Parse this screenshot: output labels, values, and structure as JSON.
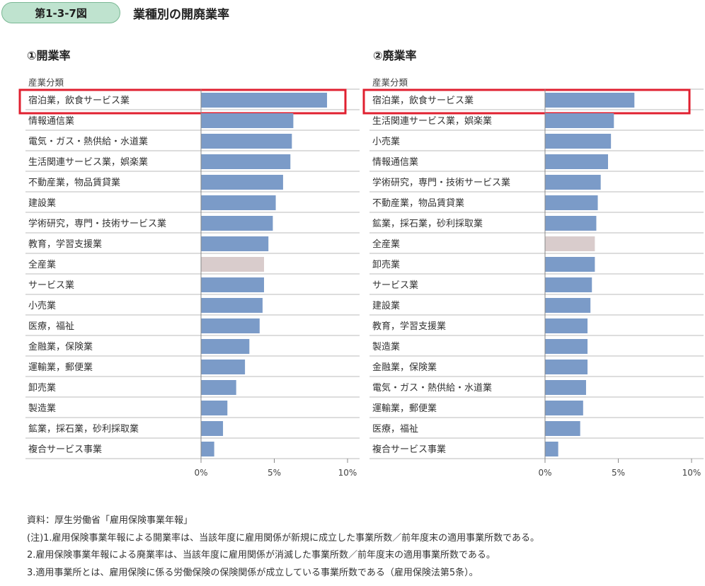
{
  "figure": {
    "number": "第1-3-7図",
    "title": "業種別の開廃業率"
  },
  "chart_data": [
    {
      "type": "bar",
      "title": "①開業率",
      "category_header": "産業分類",
      "xlim": [
        0,
        10
      ],
      "xticks": [
        "0%",
        "5%",
        "10%"
      ],
      "bar_color": "#7b9bc8",
      "total_color": "#d9cccc",
      "highlight_color": "#e02030",
      "highlight_category": "宿泊業，飲食サービス業",
      "total_category": "全産業",
      "categories": [
        "宿泊業，飲食サービス業",
        "情報通信業",
        "電気・ガス・熱供給・水道業",
        "生活関連サービス業，娯楽業",
        "不動産業，物品賃貸業",
        "建設業",
        "学術研究，専門・技術サービス業",
        "教育，学習支援業",
        "全産業",
        "サービス業",
        "小売業",
        "医療，福祉",
        "金融業，保険業",
        "運輸業，郵便業",
        "卸売業",
        "製造業",
        "鉱業，採石業，砂利採取業",
        "複合サービス事業"
      ],
      "values": [
        8.6,
        6.3,
        6.2,
        6.1,
        5.6,
        5.1,
        4.9,
        4.6,
        4.3,
        4.3,
        4.2,
        4.0,
        3.3,
        3.0,
        2.4,
        1.8,
        1.5,
        0.9
      ]
    },
    {
      "type": "bar",
      "title": "②廃業率",
      "category_header": "産業分類",
      "xlim": [
        0,
        10
      ],
      "xticks": [
        "0%",
        "5%",
        "10%"
      ],
      "bar_color": "#7b9bc8",
      "total_color": "#d9cccc",
      "highlight_color": "#e02030",
      "highlight_category": "宿泊業，飲食サービス業",
      "total_category": "全産業",
      "categories": [
        "宿泊業，飲食サービス業",
        "生活関連サービス業，娯楽業",
        "小売業",
        "情報通信業",
        "学術研究，専門・技術サービス業",
        "不動産業，物品賃貸業",
        "鉱業，採石業，砂利採取業",
        "全産業",
        "卸売業",
        "サービス業",
        "建設業",
        "教育，学習支援業",
        "製造業",
        "金融業，保険業",
        "電気・ガス・熱供給・水道業",
        "運輸業，郵便業",
        "医療，福祉",
        "複合サービス事業"
      ],
      "values": [
        6.1,
        4.7,
        4.5,
        4.3,
        3.8,
        3.6,
        3.5,
        3.4,
        3.4,
        3.2,
        3.1,
        2.9,
        2.9,
        2.9,
        2.8,
        2.6,
        2.4,
        0.9
      ]
    }
  ],
  "notes": [
    "資料：厚生労働省「雇用保険事業年報」",
    "(注)1.雇用保険事業年報による開業率は、当該年度に雇用関係が新規に成立した事業所数／前年度末の適用事業所数である。",
    "2.雇用保険事業年報による廃業率は、当該年度に雇用関係が消滅した事業所数／前年度末の適用事業所数である。",
    "3.適用事業所とは、雇用保険に係る労働保険の保険関係が成立している事業所数である（雇用保険法第5条）。"
  ]
}
